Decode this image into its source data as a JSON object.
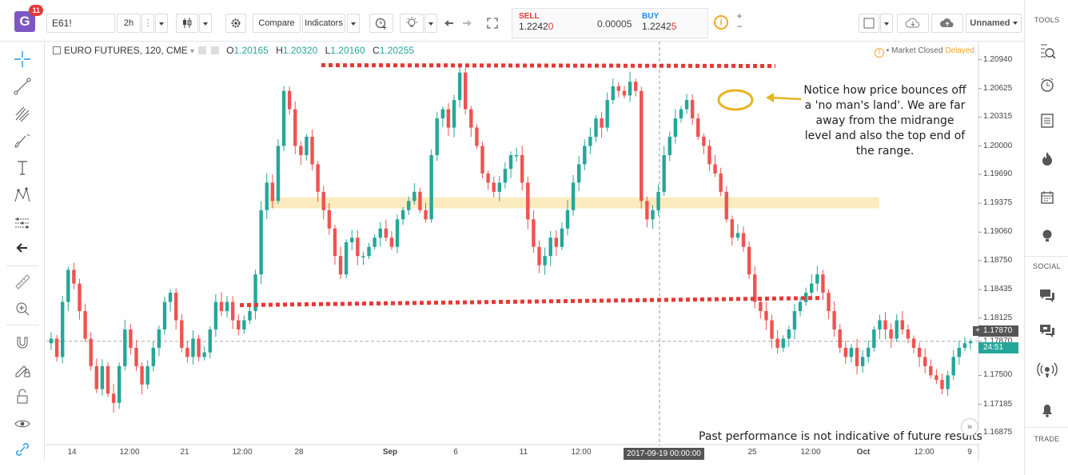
{
  "toolbar": {
    "logo_letter": "G",
    "logo_badge": "11",
    "symbol": "E61!",
    "interval": "2h",
    "compare_label": "Compare",
    "indicators_label": "Indicators",
    "sell_label": "SELL",
    "sell_price_main": "1.2242",
    "sell_price_tail": "0",
    "spread": "0.00005",
    "buy_label": "BUY",
    "buy_price_main": "1.2242",
    "buy_price_tail": "5",
    "info_glyph": "i",
    "plus": "+",
    "minus": "−",
    "layout_name": "Unnamed"
  },
  "right_sidebar": {
    "tools_title": "TOOLS",
    "social_title": "SOCIAL",
    "trade_title": "TRADE"
  },
  "legend": {
    "title": "EURO FUTURES, 120, CME",
    "o_label": "O",
    "o": "1.20165",
    "h_label": "H",
    "h": "1.20320",
    "l_label": "L",
    "l": "1.20160",
    "c_label": "C",
    "c": "1.20255"
  },
  "market_status": {
    "glyph": "!",
    "status": "• Market Closed",
    "delayed": "Delayed"
  },
  "annotation": "Notice how price bounces off a 'no man's land'. We are far away from the midrange level and also the top end of the range.",
  "disclaimer": "Past performance is not indicative of future results",
  "scroll_glyph": "»",
  "price_axis": [
    "1.20940",
    "1.20625",
    "1.20315",
    "1.20000",
    "1.19690",
    "1.19375",
    "1.19060",
    "1.18750",
    "1.18435",
    "1.18125",
    "1.17870",
    "1.17500",
    "1.17185",
    "1.16875"
  ],
  "current_price": "1.17870",
  "countdown": "24:51",
  "crosshair_date": "2017-09-19 00:00:00",
  "time_axis": [
    "14",
    "12:00",
    "21",
    "12:00",
    "28",
    "Sep",
    "6",
    "11",
    "12:00",
    "20",
    "25",
    "12:00",
    "Oct",
    "12:00",
    "9"
  ],
  "chart_data": {
    "type": "candlestick",
    "symbol": "EURO FUTURES",
    "interval": "120",
    "exchange": "CME",
    "ylim": [
      1.166,
      1.211
    ],
    "x_ticks": [
      "14",
      "12:00",
      "21",
      "12:00",
      "28",
      "Sep",
      "6",
      "11",
      "12:00",
      "20",
      "25",
      "12:00",
      "Oct",
      "12:00",
      "9"
    ],
    "y_ticks": [
      1.2094,
      1.20625,
      1.20315,
      1.2,
      1.1969,
      1.19375,
      1.1906,
      1.1875,
      1.18435,
      1.18125,
      1.1787,
      1.175,
      1.17185,
      1.16875
    ],
    "close_path": [
      1.179,
      1.177,
      1.183,
      1.1865,
      1.185,
      1.182,
      1.179,
      1.176,
      1.1735,
      1.176,
      1.173,
      1.172,
      1.176,
      1.18,
      1.178,
      1.176,
      1.174,
      1.176,
      1.178,
      1.18,
      1.183,
      1.184,
      1.181,
      1.178,
      1.177,
      1.179,
      1.177,
      1.1775,
      1.18,
      1.183,
      1.182,
      1.183,
      1.181,
      1.18,
      1.181,
      1.182,
      1.186,
      1.193,
      1.196,
      1.194,
      1.2,
      1.206,
      1.204,
      1.2,
      1.199,
      1.201,
      1.198,
      1.195,
      1.193,
      1.191,
      1.188,
      1.186,
      1.1895,
      1.19,
      1.188,
      1.188,
      1.189,
      1.19,
      1.191,
      1.19,
      1.189,
      1.192,
      1.193,
      1.194,
      1.195,
      1.193,
      1.192,
      1.199,
      1.203,
      1.204,
      1.202,
      1.205,
      1.208,
      1.204,
      1.202,
      1.2,
      1.197,
      1.196,
      1.195,
      1.196,
      1.1975,
      1.199,
      1.199,
      1.196,
      1.192,
      1.189,
      1.187,
      1.188,
      1.19,
      1.189,
      1.191,
      1.193,
      1.196,
      1.198,
      1.2,
      1.201,
      1.203,
      1.202,
      1.205,
      1.2065,
      1.206,
      1.2055,
      1.207,
      1.206,
      1.194,
      1.192,
      1.193,
      1.195,
      1.199,
      1.201,
      1.203,
      1.204,
      1.205,
      1.203,
      1.201,
      1.2,
      1.198,
      1.197,
      1.195,
      1.192,
      1.19,
      1.1905,
      1.189,
      1.186,
      1.183,
      1.182,
      1.181,
      1.179,
      1.178,
      1.179,
      1.18,
      1.182,
      1.183,
      1.184,
      1.185,
      1.186,
      1.184,
      1.182,
      1.18,
      1.178,
      1.177,
      1.178,
      1.176,
      1.177,
      1.178,
      1.18,
      1.181,
      1.18,
      1.179,
      1.181,
      1.18,
      1.179,
      1.178,
      1.177,
      1.176,
      1.175,
      1.1745,
      1.1735,
      1.175,
      1.177,
      1.178,
      1.1785,
      1.1787
    ],
    "resistance": 1.2088,
    "midrange_zone": [
      1.1932,
      1.1944
    ],
    "support": 1.183,
    "crosshair_price": 1.1787
  }
}
